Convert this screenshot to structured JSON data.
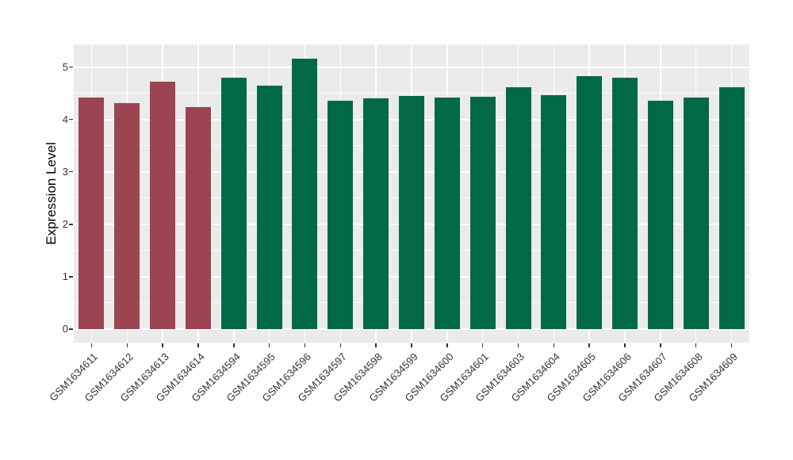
{
  "chart_data": {
    "type": "bar",
    "title": "",
    "xlabel": "",
    "ylabel": "Expression Level",
    "categories": [
      "GSM1634611",
      "GSM1634612",
      "GSM1634613",
      "GSM1634614",
      "GSM1634594",
      "GSM1634595",
      "GSM1634596",
      "GSM1634597",
      "GSM1634598",
      "GSM1634599",
      "GSM1634600",
      "GSM1634601",
      "GSM1634603",
      "GSM1634604",
      "GSM1634605",
      "GSM1634606",
      "GSM1634607",
      "GSM1634608",
      "GSM1634609"
    ],
    "values": [
      4.42,
      4.31,
      4.72,
      4.23,
      4.79,
      4.64,
      5.16,
      4.35,
      4.4,
      4.45,
      4.42,
      4.44,
      4.61,
      4.47,
      4.83,
      4.79,
      4.36,
      4.42,
      4.61
    ],
    "bar_groups": [
      "group1",
      "group1",
      "group1",
      "group1",
      "group2",
      "group2",
      "group2",
      "group2",
      "group2",
      "group2",
      "group2",
      "group2",
      "group2",
      "group2",
      "group2",
      "group2",
      "group2",
      "group2",
      "group2"
    ],
    "group_colors": {
      "group1": "#9C4452",
      "group2": "#016945"
    },
    "yticks": [
      0,
      1,
      2,
      3,
      4,
      5
    ],
    "ylim": [
      -0.26,
      5.43
    ],
    "grid": "on",
    "legend": "none",
    "colors": {
      "panel_background": "#EBEBEB",
      "gridline": "#FFFFFF",
      "axis_text": "#333333",
      "axis_title": "#000000"
    }
  }
}
